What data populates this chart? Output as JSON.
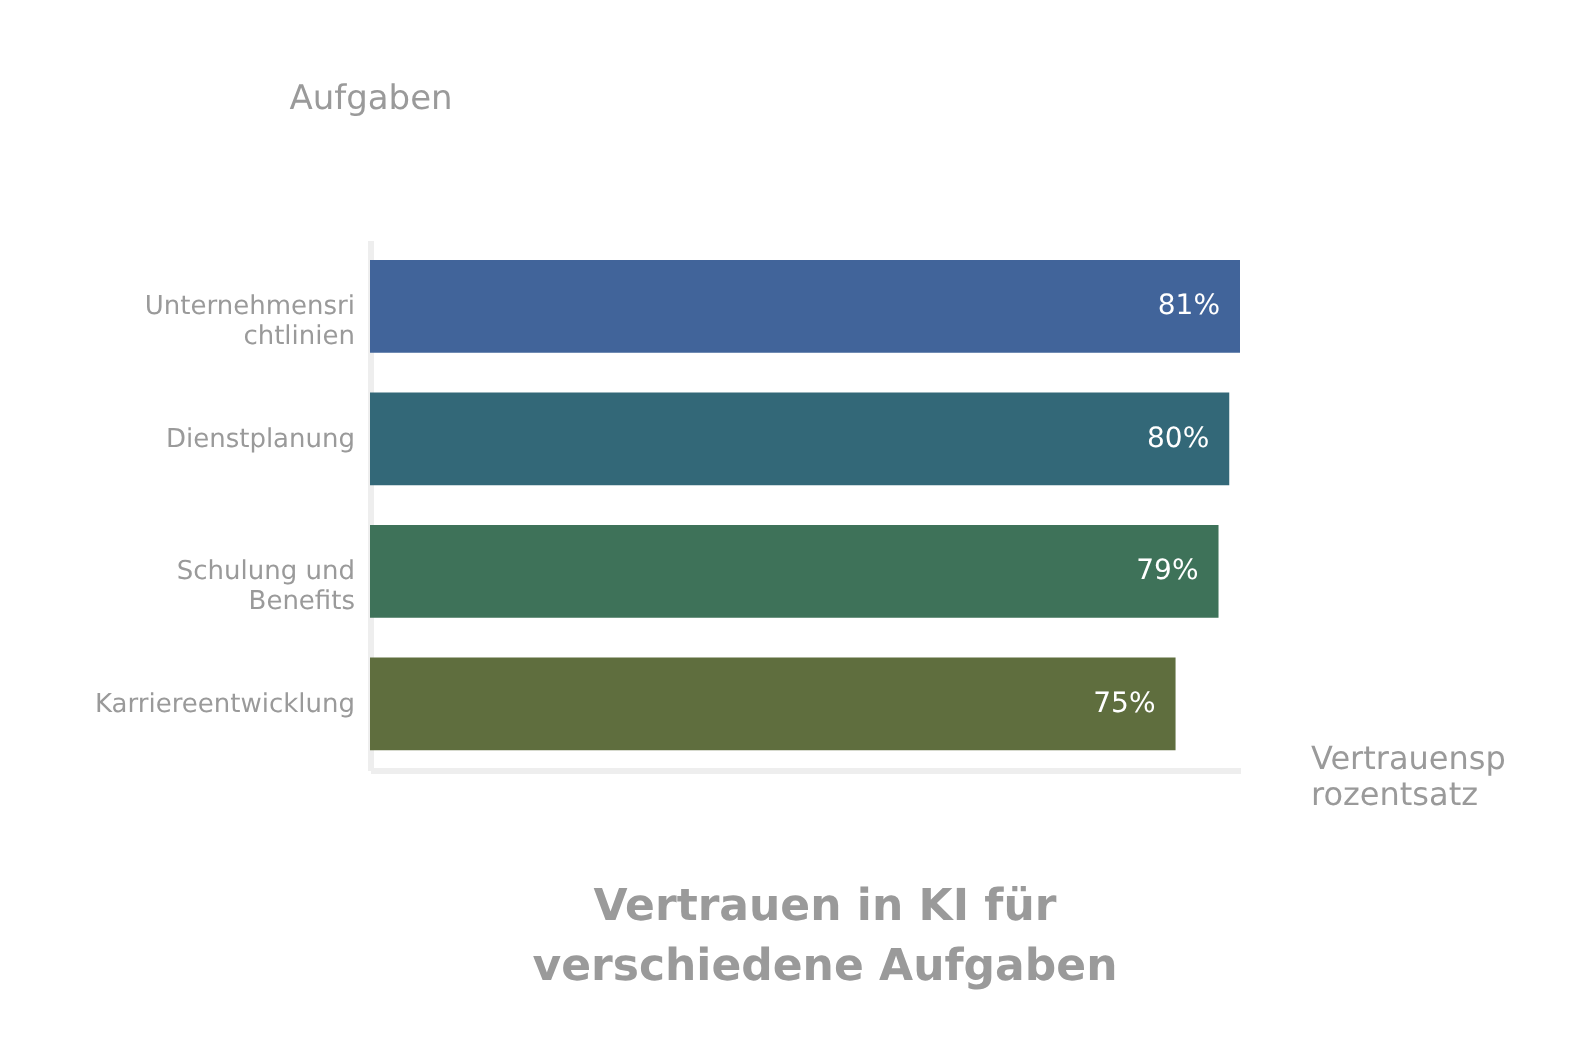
{
  "chart_data": {
    "type": "bar",
    "orientation": "horizontal",
    "title": "Vertrauen in KI für verschiedene Aufgaben",
    "xlabel": "Vertrauensprozentsatz",
    "ylabel": "Aufgaben",
    "categories": [
      "Unternehmensrichtlinien",
      "Dienstplanung",
      "Schulung und Benefits",
      "Karriereentwicklung"
    ],
    "values": [
      81,
      80,
      79,
      75
    ],
    "value_labels": [
      "81%",
      "80%",
      "79%",
      "75%"
    ],
    "colors": [
      "#41649a",
      "#336878",
      "#3e7259",
      "#5f6e3e"
    ],
    "grid": false,
    "legend": false
  }
}
